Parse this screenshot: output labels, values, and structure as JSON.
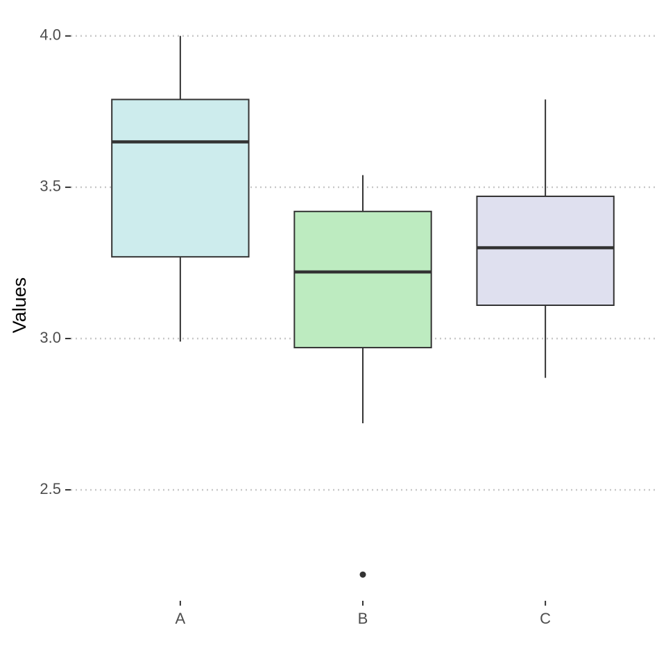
{
  "chart_data": {
    "type": "boxplot",
    "y_label": "Values",
    "categories": [
      "A",
      "B",
      "C"
    ],
    "boxes": [
      {
        "min": 2.99,
        "q1": 3.27,
        "median": 3.65,
        "q3": 3.79,
        "max": 4.0,
        "outliers": [],
        "color": "#cdeced"
      },
      {
        "min": 2.72,
        "q1": 2.97,
        "median": 3.22,
        "q3": 3.42,
        "max": 3.54,
        "outliers": [
          2.22
        ],
        "color": "#bdebc0"
      },
      {
        "min": 2.87,
        "q1": 3.11,
        "median": 3.3,
        "q3": 3.47,
        "max": 3.79,
        "outliers": [],
        "color": "#dfe0ef"
      }
    ],
    "ylim": [
      2.17,
      4.05
    ],
    "yticks": [
      {
        "value": 2.5,
        "label": "2.5"
      },
      {
        "value": 3,
        "label": "3.0"
      },
      {
        "value": 3.5,
        "label": "3.5"
      },
      {
        "value": 4,
        "label": "4.0"
      }
    ],
    "grid": true
  }
}
